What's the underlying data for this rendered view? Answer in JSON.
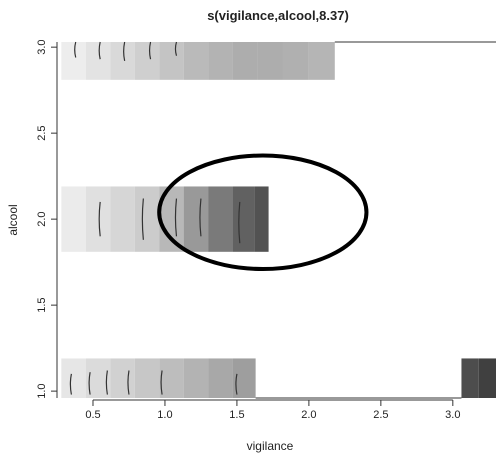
{
  "chart_data": {
    "type": "heatmap",
    "title": "s(vigilance,alcool,8.37)",
    "xlabel": "vigilance",
    "ylabel": "alcool",
    "xlim": [
      0.25,
      3.3
    ],
    "ylim": [
      0.96,
      3.03
    ],
    "x_ticks": [
      "0.5",
      "1.0",
      "1.5",
      "2.0",
      "2.5",
      "3.0"
    ],
    "y_ticks": [
      "1.0",
      "1.5",
      "2.0",
      "2.5",
      "3.0"
    ],
    "band_halfwidth": 0.19,
    "bands": [
      {
        "alcool": 3.0,
        "cells": [
          {
            "x0": 0.28,
            "x1": 0.45,
            "shade": 0.93
          },
          {
            "x0": 0.45,
            "x1": 0.62,
            "shade": 0.89
          },
          {
            "x0": 0.62,
            "x1": 0.79,
            "shade": 0.85
          },
          {
            "x0": 0.79,
            "x1": 0.96,
            "shade": 0.81
          },
          {
            "x0": 0.96,
            "x1": 1.13,
            "shade": 0.77
          },
          {
            "x0": 1.13,
            "x1": 1.3,
            "shade": 0.73
          },
          {
            "x0": 1.3,
            "x1": 1.47,
            "shade": 0.7
          },
          {
            "x0": 1.47,
            "x1": 1.64,
            "shade": 0.68
          },
          {
            "x0": 1.64,
            "x1": 1.82,
            "shade": 0.68
          },
          {
            "x0": 1.82,
            "x1": 2.0,
            "shade": 0.69
          },
          {
            "x0": 2.0,
            "x1": 2.18,
            "shade": 0.71
          }
        ]
      },
      {
        "alcool": 2.0,
        "cells": [
          {
            "x0": 0.28,
            "x1": 0.45,
            "shade": 0.92
          },
          {
            "x0": 0.45,
            "x1": 0.62,
            "shade": 0.88
          },
          {
            "x0": 0.62,
            "x1": 0.79,
            "shade": 0.84
          },
          {
            "x0": 0.79,
            "x1": 0.96,
            "shade": 0.8
          },
          {
            "x0": 0.96,
            "x1": 1.13,
            "shade": 0.72
          },
          {
            "x0": 1.13,
            "x1": 1.3,
            "shade": 0.6
          },
          {
            "x0": 1.3,
            "x1": 1.47,
            "shade": 0.48
          },
          {
            "x0": 1.47,
            "x1": 1.62,
            "shade": 0.38
          },
          {
            "x0": 1.62,
            "x1": 1.72,
            "shade": 0.32
          }
        ]
      },
      {
        "alcool": 1.0,
        "cells": [
          {
            "x0": 0.28,
            "x1": 0.45,
            "shade": 0.9
          },
          {
            "x0": 0.45,
            "x1": 0.62,
            "shade": 0.86
          },
          {
            "x0": 0.62,
            "x1": 0.79,
            "shade": 0.82
          },
          {
            "x0": 0.79,
            "x1": 0.96,
            "shade": 0.78
          },
          {
            "x0": 0.96,
            "x1": 1.13,
            "shade": 0.74
          },
          {
            "x0": 1.13,
            "x1": 1.3,
            "shade": 0.7
          },
          {
            "x0": 1.3,
            "x1": 1.47,
            "shade": 0.66
          },
          {
            "x0": 1.47,
            "x1": 1.63,
            "shade": 0.62
          },
          {
            "x0": 3.06,
            "x1": 3.18,
            "shade": 0.3
          },
          {
            "x0": 3.18,
            "x1": 3.3,
            "shade": 0.25
          }
        ]
      }
    ],
    "contours": [
      {
        "x": 0.38,
        "y0": 2.94,
        "y1": 3.03
      },
      {
        "x": 0.55,
        "y0": 2.93,
        "y1": 3.03
      },
      {
        "x": 0.72,
        "y0": 2.92,
        "y1": 3.03
      },
      {
        "x": 0.9,
        "y0": 2.93,
        "y1": 3.03
      },
      {
        "x": 1.08,
        "y0": 2.95,
        "y1": 3.03
      },
      {
        "x": 0.55,
        "y0": 1.9,
        "y1": 2.1
      },
      {
        "x": 0.85,
        "y0": 1.88,
        "y1": 2.12
      },
      {
        "x": 1.08,
        "y0": 1.9,
        "y1": 2.12
      },
      {
        "x": 1.25,
        "y0": 1.9,
        "y1": 2.12
      },
      {
        "x": 1.52,
        "y0": 1.86,
        "y1": 2.1
      },
      {
        "x": 0.35,
        "y0": 0.98,
        "y1": 1.1
      },
      {
        "x": 0.48,
        "y0": 0.98,
        "y1": 1.11
      },
      {
        "x": 0.6,
        "y0": 0.98,
        "y1": 1.12
      },
      {
        "x": 0.75,
        "y0": 0.98,
        "y1": 1.12
      },
      {
        "x": 0.98,
        "y0": 0.98,
        "y1": 1.12
      },
      {
        "x": 1.5,
        "y0": 0.98,
        "y1": 1.1
      }
    ],
    "annotation_ellipse": {
      "cx": 1.68,
      "cy": 2.04,
      "rx": 0.72,
      "ry": 0.33
    }
  }
}
